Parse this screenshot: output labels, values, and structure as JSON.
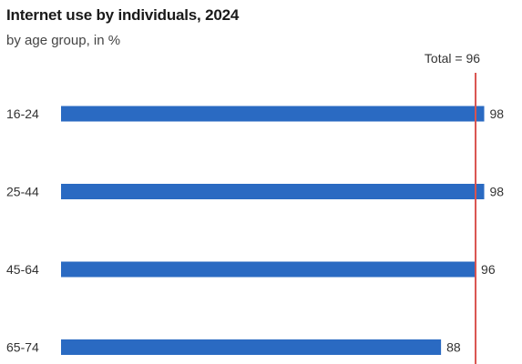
{
  "title": "Internet use by individuals, 2024",
  "subtitle": "by age group, in %",
  "colors": {
    "bar": "#2a6ac2",
    "reference_line": "#d9534f",
    "text": "#333333"
  },
  "chart_data": {
    "type": "bar",
    "orientation": "horizontal",
    "title": "Internet use by individuals, 2024",
    "subtitle": "by age group, in %",
    "categories": [
      "16-24",
      "25-44",
      "45-64",
      "65-74"
    ],
    "values": [
      98,
      98,
      96,
      88
    ],
    "value_labels": [
      "98",
      "98",
      "96",
      "88"
    ],
    "xlim": [
      0,
      100
    ],
    "grid": false,
    "reference_line": {
      "value": 96,
      "label": "Total = 96"
    }
  }
}
